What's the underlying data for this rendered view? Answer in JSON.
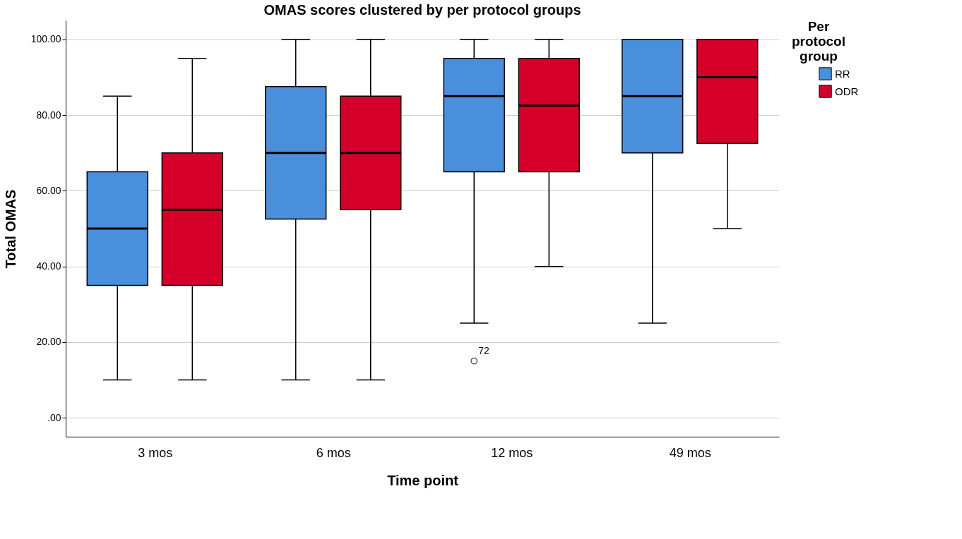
{
  "chart_data": {
    "type": "box",
    "title": "OMAS scores clustered by per protocol groups",
    "xlabel": "Time point",
    "ylabel": "Total OMAS",
    "legend_title": "Per protocol group",
    "categories": [
      "3 mos",
      "6 mos",
      "12 mos",
      "49 mos"
    ],
    "series": [
      {
        "name": "RR",
        "color": "#4a8fdb",
        "boxes": [
          {
            "low": 10,
            "q1": 35,
            "median": 50,
            "q3": 65,
            "high": 85
          },
          {
            "low": 10,
            "q1": 52.5,
            "median": 70,
            "q3": 87.5,
            "high": 100
          },
          {
            "low": 25,
            "q1": 65,
            "median": 85,
            "q3": 95,
            "high": 100,
            "outliers": [
              15
            ]
          },
          {
            "low": 25,
            "q1": 70,
            "median": 85,
            "q3": 100,
            "high": 100
          }
        ]
      },
      {
        "name": "ODR",
        "color": "#d4002a",
        "boxes": [
          {
            "low": 10,
            "q1": 35,
            "median": 55,
            "q3": 70,
            "high": 95
          },
          {
            "low": 10,
            "q1": 55,
            "median": 70,
            "q3": 85,
            "high": 100
          },
          {
            "low": 40,
            "q1": 65,
            "median": 82.5,
            "q3": 95,
            "high": 100
          },
          {
            "low": 50,
            "q1": 72.5,
            "median": 90,
            "q3": 100,
            "high": 100
          }
        ]
      }
    ],
    "ylim": [
      -5,
      105
    ],
    "yticks": [
      {
        "value": 0,
        "label": ".00"
      },
      {
        "value": 20,
        "label": "20.00"
      },
      {
        "value": 40,
        "label": "40.00"
      },
      {
        "value": 60,
        "label": "60.00"
      },
      {
        "value": 80,
        "label": "80.00"
      },
      {
        "value": 100,
        "label": "100.00"
      }
    ],
    "annotations": [
      "72"
    ],
    "grid": "y",
    "legend": "top right"
  }
}
